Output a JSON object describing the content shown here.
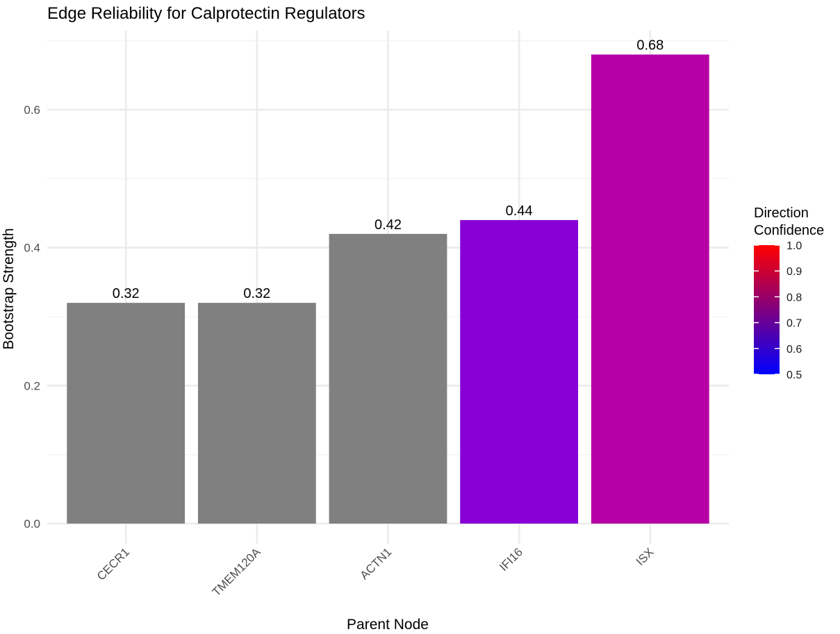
{
  "chart_data": {
    "type": "bar",
    "title": "Edge Reliability for Calprotectin Regulators",
    "xlabel": "Parent Node",
    "ylabel": "Bootstrap Strength",
    "categories": [
      "CECR1",
      "TMEM120A",
      "ACTN1",
      "IFI16",
      "ISX"
    ],
    "values": [
      0.32,
      0.32,
      0.42,
      0.44,
      0.68
    ],
    "value_labels": [
      "0.32",
      "0.32",
      "0.42",
      "0.44",
      "0.68"
    ],
    "bar_colors": [
      "#808080",
      "#808080",
      "#808080",
      "#8800d6",
      "#b600a6"
    ],
    "ylim": [
      -0.055,
      0.72
    ],
    "yticks": [
      0.0,
      0.2,
      0.4,
      0.6
    ],
    "ytick_labels": [
      "0.0",
      "0.2",
      "0.4",
      "0.6"
    ],
    "grid": true,
    "legend": {
      "title_lines": [
        "Direction",
        "Confidence"
      ],
      "placement": "right",
      "type": "colorbar",
      "range": [
        0.5,
        1.0
      ],
      "ticks": [
        0.5,
        0.6,
        0.7,
        0.8,
        0.9,
        1.0
      ],
      "tick_labels": [
        "0.5",
        "0.6",
        "0.7",
        "0.8",
        "0.9",
        "1.0"
      ],
      "low_color": "#0000ff",
      "high_color": "#ff0000"
    }
  }
}
